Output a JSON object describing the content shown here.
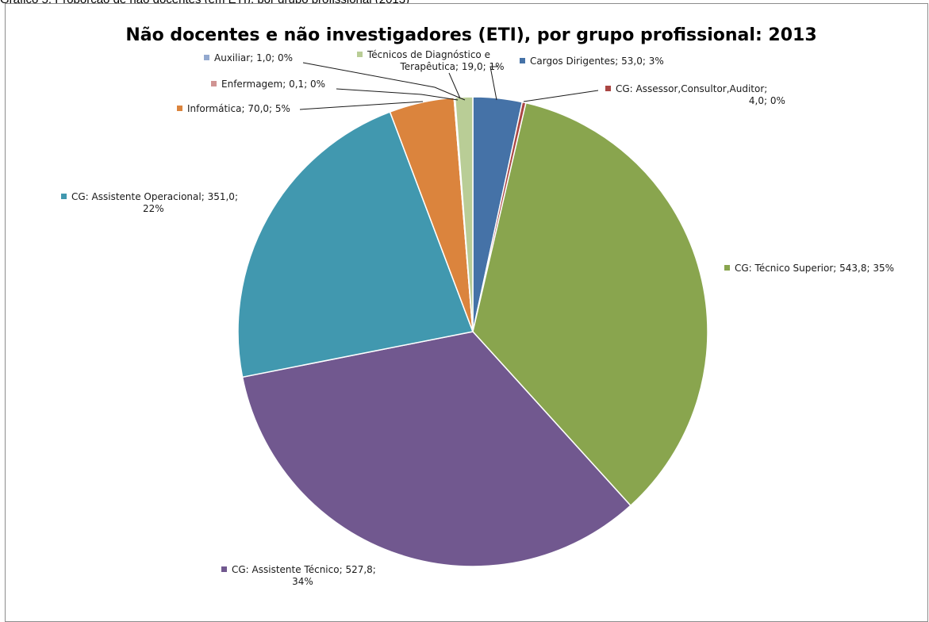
{
  "caption": "Gráfico 5: Proporção de não docentes (em ETI), por grupo profissional (2013)",
  "chart_data": {
    "type": "pie",
    "title": "Não docentes e não investigadores (ETI), por grupo profissional: 2013",
    "legend": "none",
    "slices": [
      {
        "label": "Cargos Dirigentes",
        "value": 53.0,
        "percent": "3%",
        "color": "#4572A7",
        "text_lines": [
          "Cargos Dirigentes; 53,0; 3%"
        ]
      },
      {
        "label": "CG: Assessor,Consultor,Auditor",
        "value": 4.0,
        "percent": "0%",
        "color": "#AA4643",
        "text_lines": [
          "CG: Assessor,Consultor,Auditor;",
          "4,0; 0%"
        ]
      },
      {
        "label": "CG: Técnico Superior",
        "value": 543.8,
        "percent": "35%",
        "color": "#89A54E",
        "text_lines": [
          "CG: Técnico Superior; 543,8; 35%"
        ]
      },
      {
        "label": "CG: Assistente Técnico",
        "value": 527.8,
        "percent": "34%",
        "color": "#71588F",
        "text_lines": [
          "CG: Assistente Técnico; 527,8;",
          "34%"
        ]
      },
      {
        "label": "CG: Assistente Operacional",
        "value": 351.0,
        "percent": "22%",
        "color": "#4198AF",
        "text_lines": [
          "CG: Assistente Operacional; 351,0;",
          "22%"
        ]
      },
      {
        "label": "Informática",
        "value": 70.0,
        "percent": "5%",
        "color": "#DB843D",
        "text_lines": [
          "Informática; 70,0; 5%"
        ]
      },
      {
        "label": "Enfermagem",
        "value": 0.1,
        "percent": "0%",
        "color": "#D09493",
        "text_lines": [
          "Enfermagem; 0,1; 0%"
        ]
      },
      {
        "label": "Auxiliar",
        "value": 1.0,
        "percent": "0%",
        "color": "#93A9CF",
        "text_lines": [
          "Auxiliar; 1,0; 0%"
        ]
      },
      {
        "label": "Técnicos de Diagnóstico e Terapêutica",
        "value": 19.0,
        "percent": "1%",
        "color": "#B9CD96",
        "text_lines": [
          "Técnicos de Diagnóstico e",
          "Terapêutica; 19,0; 1%"
        ]
      }
    ]
  }
}
